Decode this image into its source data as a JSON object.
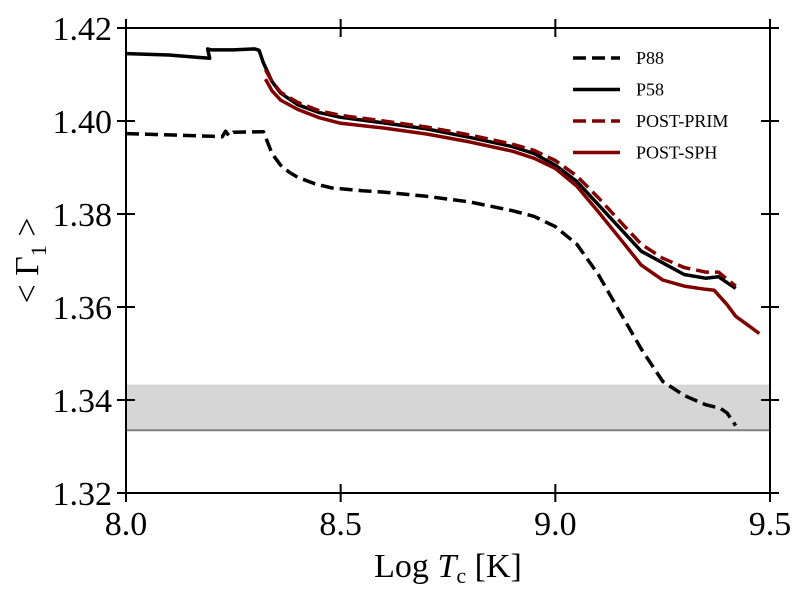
{
  "chart_data": {
    "type": "line",
    "xlabel": "Log T_c [K]",
    "ylabel": "< Γ_1 >",
    "xlim": [
      8.0,
      9.5
    ],
    "ylim": [
      1.32,
      1.42
    ],
    "xticks": [
      "8.0",
      "8.5",
      "9.0",
      "9.5"
    ],
    "yticks": [
      "1.32",
      "1.34",
      "1.36",
      "1.38",
      "1.40",
      "1.42"
    ],
    "grid": false,
    "legend_position": "top-right",
    "shaded_band": {
      "y": [
        1.3335,
        1.3433
      ],
      "color": "#d6d6d6",
      "edge_color": "#808080"
    },
    "series": [
      {
        "name": "P88",
        "color": "#000000",
        "dash": "dashed",
        "points": [
          [
            8.0,
            1.3973
          ],
          [
            8.1,
            1.397
          ],
          [
            8.2,
            1.3967
          ],
          [
            8.224,
            1.3966
          ],
          [
            8.232,
            1.3978
          ],
          [
            8.24,
            1.3968
          ],
          [
            8.25,
            1.3976
          ],
          [
            8.32,
            1.3977
          ],
          [
            8.34,
            1.393
          ],
          [
            8.36,
            1.3905
          ],
          [
            8.38,
            1.389
          ],
          [
            8.4,
            1.3879
          ],
          [
            8.44,
            1.3865
          ],
          [
            8.48,
            1.3856
          ],
          [
            8.55,
            1.385
          ],
          [
            8.6,
            1.3847
          ],
          [
            8.7,
            1.3838
          ],
          [
            8.8,
            1.3826
          ],
          [
            8.9,
            1.3807
          ],
          [
            8.95,
            1.3795
          ],
          [
            9.0,
            1.3773
          ],
          [
            9.05,
            1.3735
          ],
          [
            9.1,
            1.367
          ],
          [
            9.15,
            1.359
          ],
          [
            9.2,
            1.351
          ],
          [
            9.25,
            1.344
          ],
          [
            9.28,
            1.3422
          ],
          [
            9.3,
            1.341
          ],
          [
            9.35,
            1.339
          ],
          [
            9.385,
            1.3382
          ],
          [
            9.4,
            1.3372
          ],
          [
            9.42,
            1.3345
          ]
        ]
      },
      {
        "name": "P58",
        "color": "#000000",
        "dash": "solid",
        "points": [
          [
            8.0,
            1.4145
          ],
          [
            8.1,
            1.4142
          ],
          [
            8.15,
            1.4138
          ],
          [
            8.195,
            1.4135
          ],
          [
            8.19,
            1.4155
          ],
          [
            8.2,
            1.4153
          ],
          [
            8.25,
            1.4153
          ],
          [
            8.3,
            1.4155
          ],
          [
            8.31,
            1.4152
          ],
          [
            8.32,
            1.4125
          ],
          [
            8.34,
            1.4085
          ],
          [
            8.36,
            1.406
          ],
          [
            8.4,
            1.4035
          ],
          [
            8.45,
            1.4018
          ],
          [
            8.5,
            1.4008
          ],
          [
            8.6,
            1.3996
          ],
          [
            8.7,
            1.3983
          ],
          [
            8.8,
            1.3965
          ],
          [
            8.9,
            1.3945
          ],
          [
            8.95,
            1.393
          ],
          [
            9.0,
            1.3905
          ],
          [
            9.05,
            1.387
          ],
          [
            9.1,
            1.382
          ],
          [
            9.15,
            1.377
          ],
          [
            9.2,
            1.372
          ],
          [
            9.25,
            1.3695
          ],
          [
            9.3,
            1.367
          ],
          [
            9.35,
            1.3662
          ],
          [
            9.38,
            1.3665
          ],
          [
            9.42,
            1.364
          ]
        ]
      },
      {
        "name": "POST-PRIM",
        "color": "#800000",
        "dash": "dashed",
        "points": [
          [
            8.325,
            1.411
          ],
          [
            8.34,
            1.4085
          ],
          [
            8.36,
            1.4062
          ],
          [
            8.4,
            1.404
          ],
          [
            8.45,
            1.4022
          ],
          [
            8.5,
            1.4012
          ],
          [
            8.6,
            1.4
          ],
          [
            8.7,
            1.3987
          ],
          [
            8.8,
            1.397
          ],
          [
            8.9,
            1.395
          ],
          [
            8.95,
            1.3937
          ],
          [
            9.0,
            1.3915
          ],
          [
            9.05,
            1.3882
          ],
          [
            9.1,
            1.3835
          ],
          [
            9.15,
            1.3785
          ],
          [
            9.2,
            1.3735
          ],
          [
            9.25,
            1.3705
          ],
          [
            9.3,
            1.3685
          ],
          [
            9.35,
            1.3675
          ],
          [
            9.38,
            1.3675
          ],
          [
            9.42,
            1.3645
          ]
        ]
      },
      {
        "name": "POST-SPH",
        "color": "#800000",
        "dash": "solid",
        "points": [
          [
            8.325,
            1.409
          ],
          [
            8.34,
            1.4065
          ],
          [
            8.36,
            1.4045
          ],
          [
            8.4,
            1.4025
          ],
          [
            8.45,
            1.4007
          ],
          [
            8.5,
            1.3995
          ],
          [
            8.6,
            1.3985
          ],
          [
            8.7,
            1.3972
          ],
          [
            8.8,
            1.3955
          ],
          [
            8.9,
            1.3935
          ],
          [
            8.95,
            1.392
          ],
          [
            9.0,
            1.3898
          ],
          [
            9.05,
            1.386
          ],
          [
            9.1,
            1.3805
          ],
          [
            9.15,
            1.3748
          ],
          [
            9.2,
            1.369
          ],
          [
            9.25,
            1.3658
          ],
          [
            9.3,
            1.3645
          ],
          [
            9.35,
            1.3638
          ],
          [
            9.37,
            1.3636
          ],
          [
            9.4,
            1.3605
          ],
          [
            9.42,
            1.358
          ],
          [
            9.45,
            1.356
          ],
          [
            9.475,
            1.3543
          ]
        ]
      }
    ]
  }
}
